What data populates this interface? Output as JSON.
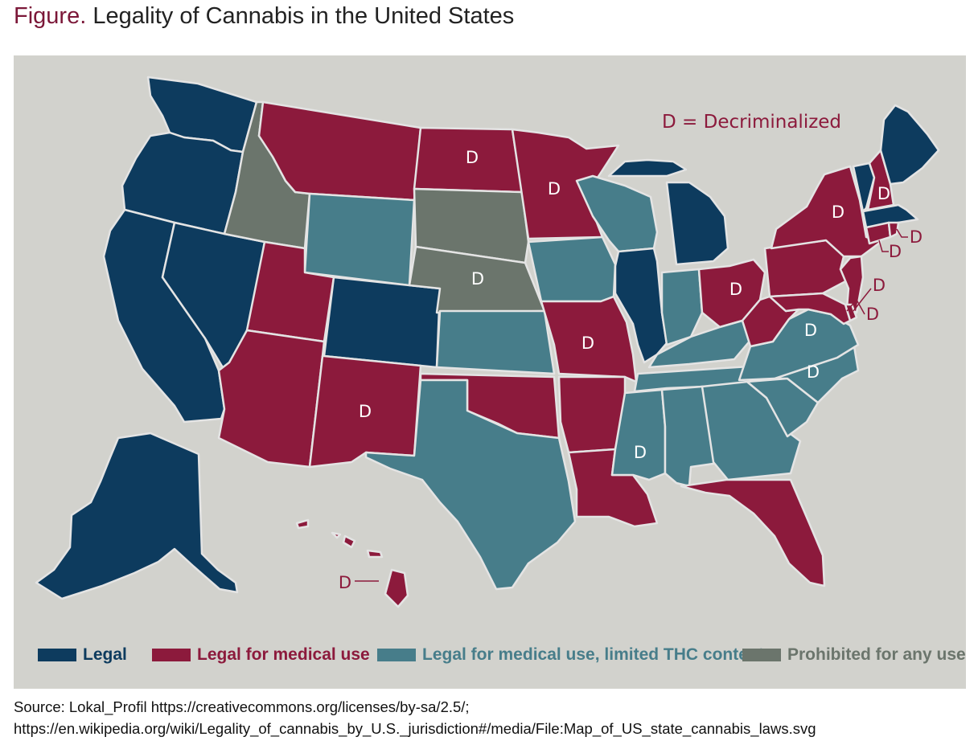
{
  "title": {
    "prefix": "Figure.",
    "text": "Legality of Cannabis in the United States"
  },
  "annotation": {
    "decriminalized_key": "D = Decriminalized",
    "mark": "D"
  },
  "legend": [
    {
      "key": "legal",
      "label": "Legal",
      "color": "#0d3b5e"
    },
    {
      "key": "medical",
      "label": "Legal for medical use",
      "color": "#8c1a3c"
    },
    {
      "key": "limited",
      "label": "Legal for medical use, limited THC content",
      "color": "#477d8a"
    },
    {
      "key": "prohibited",
      "label": "Prohibited for any use",
      "color": "#6b756c"
    }
  ],
  "states": [
    {
      "name": "Washington",
      "status": "legal",
      "decriminalized": false
    },
    {
      "name": "Oregon",
      "status": "legal",
      "decriminalized": false
    },
    {
      "name": "California",
      "status": "legal",
      "decriminalized": false
    },
    {
      "name": "Nevada",
      "status": "legal",
      "decriminalized": false
    },
    {
      "name": "Idaho",
      "status": "prohibited",
      "decriminalized": false
    },
    {
      "name": "Montana",
      "status": "medical",
      "decriminalized": false
    },
    {
      "name": "Wyoming",
      "status": "limited",
      "decriminalized": false
    },
    {
      "name": "Utah",
      "status": "medical",
      "decriminalized": false
    },
    {
      "name": "Colorado",
      "status": "legal",
      "decriminalized": false
    },
    {
      "name": "Arizona",
      "status": "medical",
      "decriminalized": false
    },
    {
      "name": "New Mexico",
      "status": "medical",
      "decriminalized": true
    },
    {
      "name": "North Dakota",
      "status": "medical",
      "decriminalized": true
    },
    {
      "name": "South Dakota",
      "status": "prohibited",
      "decriminalized": false
    },
    {
      "name": "Nebraska",
      "status": "prohibited",
      "decriminalized": true
    },
    {
      "name": "Kansas",
      "status": "limited",
      "decriminalized": false
    },
    {
      "name": "Oklahoma",
      "status": "medical",
      "decriminalized": false
    },
    {
      "name": "Texas",
      "status": "limited",
      "decriminalized": false
    },
    {
      "name": "Minnesota",
      "status": "medical",
      "decriminalized": true
    },
    {
      "name": "Iowa",
      "status": "limited",
      "decriminalized": false
    },
    {
      "name": "Missouri",
      "status": "medical",
      "decriminalized": true
    },
    {
      "name": "Arkansas",
      "status": "medical",
      "decriminalized": false
    },
    {
      "name": "Louisiana",
      "status": "medical",
      "decriminalized": false
    },
    {
      "name": "Wisconsin",
      "status": "limited",
      "decriminalized": false
    },
    {
      "name": "Illinois",
      "status": "legal",
      "decriminalized": false
    },
    {
      "name": "Michigan",
      "status": "legal",
      "decriminalized": false
    },
    {
      "name": "Indiana",
      "status": "limited",
      "decriminalized": false
    },
    {
      "name": "Ohio",
      "status": "medical",
      "decriminalized": true
    },
    {
      "name": "Kentucky",
      "status": "limited",
      "decriminalized": false
    },
    {
      "name": "Tennessee",
      "status": "limited",
      "decriminalized": false
    },
    {
      "name": "Mississippi",
      "status": "limited",
      "decriminalized": true
    },
    {
      "name": "Alabama",
      "status": "limited",
      "decriminalized": false
    },
    {
      "name": "Georgia",
      "status": "limited",
      "decriminalized": false
    },
    {
      "name": "Florida",
      "status": "medical",
      "decriminalized": false
    },
    {
      "name": "South Carolina",
      "status": "limited",
      "decriminalized": false
    },
    {
      "name": "North Carolina",
      "status": "limited",
      "decriminalized": true
    },
    {
      "name": "Virginia",
      "status": "limited",
      "decriminalized": true
    },
    {
      "name": "West Virginia",
      "status": "medical",
      "decriminalized": false
    },
    {
      "name": "Pennsylvania",
      "status": "medical",
      "decriminalized": false
    },
    {
      "name": "New York",
      "status": "medical",
      "decriminalized": true
    },
    {
      "name": "Vermont",
      "status": "legal",
      "decriminalized": false
    },
    {
      "name": "New Hampshire",
      "status": "medical",
      "decriminalized": true
    },
    {
      "name": "Maine",
      "status": "legal",
      "decriminalized": false
    },
    {
      "name": "Massachusetts",
      "status": "legal",
      "decriminalized": false
    },
    {
      "name": "Connecticut",
      "status": "medical",
      "decriminalized": true
    },
    {
      "name": "Rhode Island",
      "status": "medical",
      "decriminalized": true
    },
    {
      "name": "New Jersey",
      "status": "medical",
      "decriminalized": false
    },
    {
      "name": "Delaware",
      "status": "medical",
      "decriminalized": true
    },
    {
      "name": "Maryland",
      "status": "medical",
      "decriminalized": true
    },
    {
      "name": "Alaska",
      "status": "legal",
      "decriminalized": false
    },
    {
      "name": "Hawaii",
      "status": "medical",
      "decriminalized": true
    }
  ],
  "colors": {
    "panel_bg": "#d2d2cd",
    "border": "#e4e4e4",
    "title_accent": "#7b1738",
    "d_text": "#ffffff"
  },
  "source": {
    "line1": "Source: Lokal_Profil https://creativecommons.org/licenses/by-sa/2.5/;",
    "line2": "https://en.wikipedia.org/wiki/Legality_of_cannabis_by_U.S._jurisdiction#/media/File:Map_of_US_state_cannabis_laws.svg"
  }
}
